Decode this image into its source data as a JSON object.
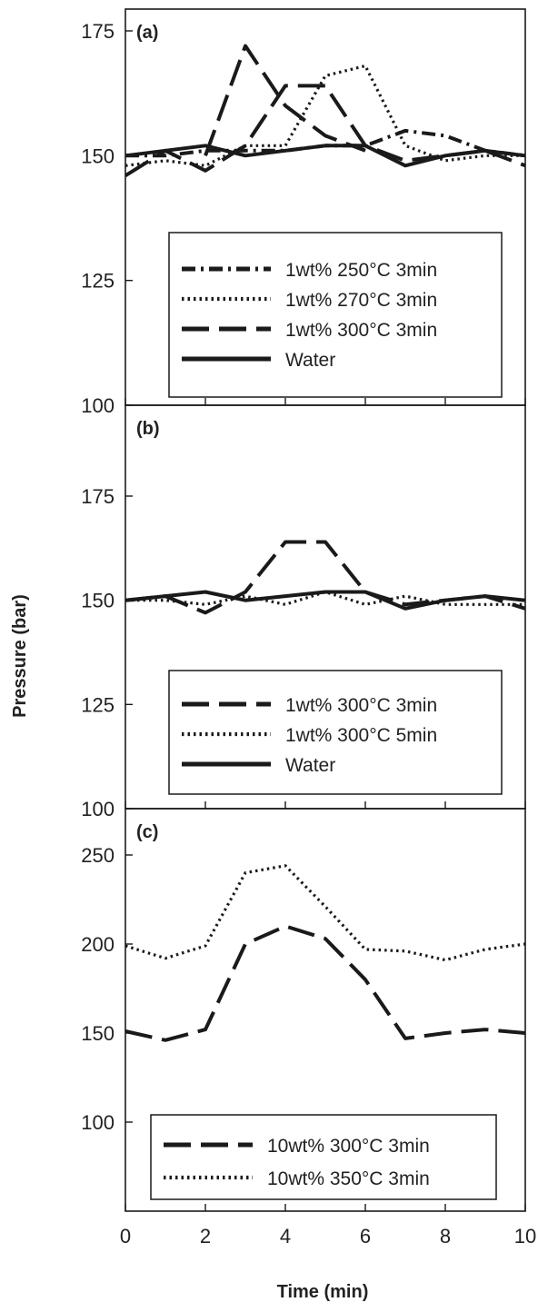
{
  "chart_data": [
    {
      "type": "line",
      "panel_label": "(a)",
      "xlim": [
        0,
        10
      ],
      "ylim": [
        100,
        180
      ],
      "yticks": [
        100,
        125,
        150,
        175
      ],
      "legend_position": "lower-center",
      "series": [
        {
          "name": "1wt% 250°C 3min",
          "style": "dashdot",
          "x": [
            0,
            1,
            2,
            3,
            4,
            5,
            6,
            7,
            8,
            9,
            10
          ],
          "y": [
            150,
            150,
            151,
            151,
            151,
            152,
            152,
            155,
            154,
            151,
            150
          ]
        },
        {
          "name": "1wt% 270°C 3min",
          "style": "dotted",
          "x": [
            0,
            1,
            2,
            3,
            4,
            5,
            6,
            7,
            8,
            9,
            10
          ],
          "y": [
            148,
            149,
            148,
            152,
            152,
            166,
            168,
            152,
            149,
            150,
            150
          ]
        },
        {
          "name": "1wt% 300°C 3min",
          "style": "dashed",
          "x": [
            0,
            1,
            2,
            3,
            4,
            5,
            6,
            7,
            8,
            9,
            10
          ],
          "y": [
            146,
            151,
            147,
            152,
            164,
            164,
            152,
            149,
            150,
            151,
            148
          ]
        },
        {
          "name": "Water",
          "style": "solid",
          "x": [
            0,
            1,
            2,
            3,
            4,
            5,
            6,
            7,
            8,
            9,
            10
          ],
          "y": [
            150,
            151,
            152,
            150,
            151,
            152,
            152,
            148,
            150,
            151,
            150
          ]
        },
        {
          "name": "",
          "style": "dashed",
          "in_legend": false,
          "x": [
            2,
            3,
            4,
            5,
            6
          ],
          "y": [
            150,
            172,
            160,
            154,
            151
          ]
        }
      ]
    },
    {
      "type": "line",
      "panel_label": "(b)",
      "xlim": [
        0,
        10
      ],
      "ylim": [
        100,
        180
      ],
      "yticks": [
        100,
        125,
        150,
        175
      ],
      "legend_position": "lower-center",
      "series": [
        {
          "name": "1wt% 300°C 3min",
          "style": "dashed",
          "x": [
            0,
            1,
            2,
            3,
            4,
            5,
            6,
            7,
            8,
            9,
            10
          ],
          "y": [
            150,
            151,
            147,
            152,
            164,
            164,
            152,
            149,
            150,
            151,
            148
          ]
        },
        {
          "name": "1wt% 300°C 5min",
          "style": "dotted",
          "x": [
            0,
            1,
            2,
            3,
            4,
            5,
            6,
            7,
            8,
            9,
            10
          ],
          "y": [
            150,
            150,
            149,
            151,
            149,
            152,
            149,
            151,
            149,
            149,
            149
          ]
        },
        {
          "name": "Water",
          "style": "solid",
          "x": [
            0,
            1,
            2,
            3,
            4,
            5,
            6,
            7,
            8,
            9,
            10
          ],
          "y": [
            150,
            151,
            152,
            150,
            151,
            152,
            152,
            148,
            150,
            151,
            150
          ]
        }
      ]
    },
    {
      "type": "line",
      "panel_label": "(c)",
      "xlim": [
        0,
        10
      ],
      "ylim": [
        80,
        290
      ],
      "yticks": [
        100,
        150,
        200,
        250
      ],
      "xticks": [
        0,
        2,
        4,
        6,
        8,
        10
      ],
      "legend_position": "bottom-center",
      "series": [
        {
          "name": "10wt% 300°C 3min",
          "style": "dashed",
          "x": [
            0,
            1,
            2,
            3,
            4,
            5,
            6,
            7,
            8,
            9,
            10
          ],
          "y": [
            151,
            146,
            152,
            200,
            210,
            203,
            180,
            147,
            150,
            152,
            150
          ]
        },
        {
          "name": "10wt% 350°C 3min",
          "style": "dotted",
          "x": [
            0,
            1,
            2,
            3,
            4,
            5,
            6,
            7,
            8,
            9,
            10
          ],
          "y": [
            199,
            192,
            199,
            240,
            244,
            221,
            197,
            196,
            191,
            197,
            200
          ]
        }
      ]
    }
  ],
  "axes": {
    "ylabel": "Pressure (bar)",
    "xlabel": "Time (min)"
  }
}
